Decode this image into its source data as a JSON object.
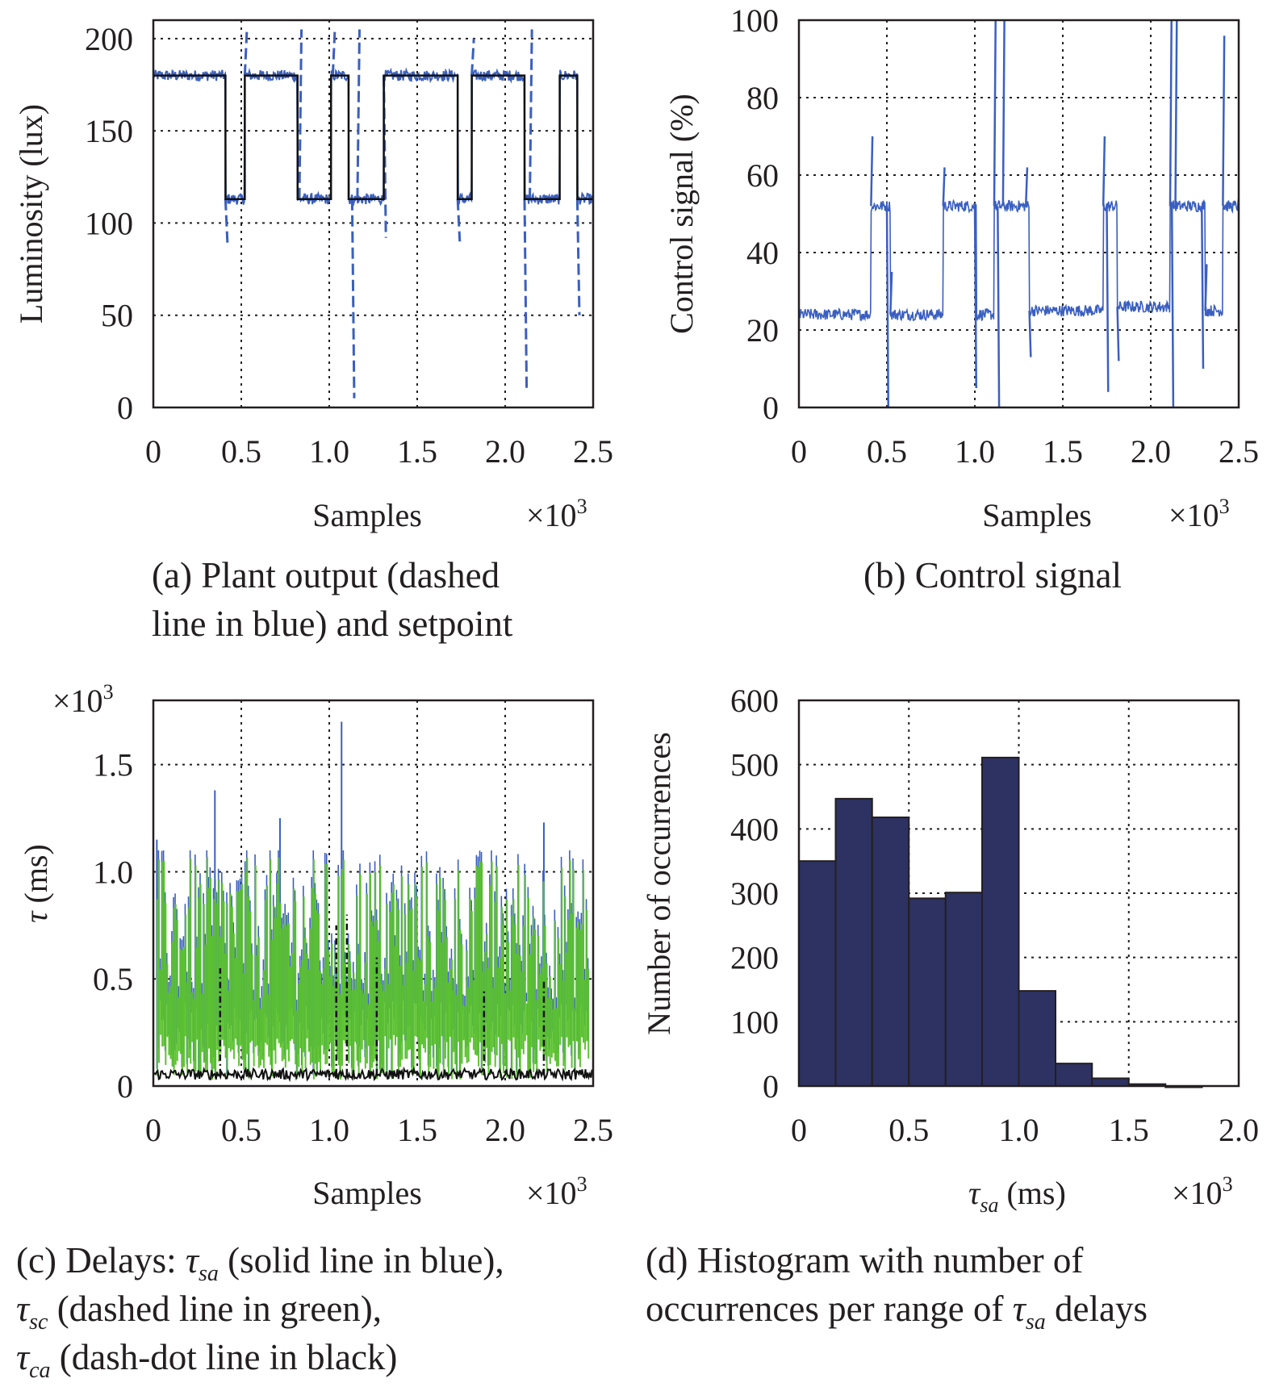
{
  "colors": {
    "blue": "#3a5fc0",
    "green": "#5cc231",
    "black": "#111111",
    "navy": "#2d3263",
    "axis": "#231f20"
  },
  "panel_a": {
    "caption_line1": "(a) Plant output (dashed",
    "caption_line2": "line in blue) and setpoint"
  },
  "panel_b": {
    "caption": "(b) Control signal"
  },
  "panel_c": {
    "caption_line1_prefix": "(c) Delays: ",
    "caption_line1_sym": "τ",
    "caption_line1_sub": "sa",
    "caption_line1_rest": " (solid line in blue),",
    "caption_line2_sym": "τ",
    "caption_line2_sub": "sc",
    "caption_line2_rest": " (dashed line in green),",
    "caption_line3_sym": "τ",
    "caption_line3_sub": "ca",
    "caption_line3_rest": " (dash-dot line in black)"
  },
  "panel_d": {
    "caption_line1": "(d) Histogram with number of",
    "caption_line2_prefix": "occurrences per range of ",
    "caption_line2_sym": "τ",
    "caption_line2_sub": "sa",
    "caption_line2_rest": " delays"
  },
  "chart_data": [
    {
      "id": "a",
      "type": "line",
      "ylabel": "Luminosity (lux)",
      "xlabel": "Samples",
      "x_multiplier": "×10",
      "x_multiplier_exp": "3",
      "xlim": [
        0,
        2.5
      ],
      "ylim": [
        0,
        210
      ],
      "xticks": [
        0,
        0.5,
        1.0,
        1.5,
        2.0,
        2.5
      ],
      "xtick_labels": [
        "0",
        "0.5",
        "1.0",
        "1.5",
        "2.0",
        "2.5"
      ],
      "yticks": [
        0,
        50,
        100,
        150,
        200
      ],
      "ytick_labels": [
        "0",
        "50",
        "100",
        "150",
        "200"
      ],
      "grid": true,
      "setpoint_steps": [
        [
          0,
          180
        ],
        [
          0.41,
          113
        ],
        [
          0.52,
          180
        ],
        [
          0.82,
          113
        ],
        [
          1.01,
          180
        ],
        [
          1.11,
          113
        ],
        [
          1.31,
          180
        ],
        [
          1.73,
          113
        ],
        [
          1.81,
          180
        ],
        [
          2.11,
          113
        ],
        [
          2.31,
          180
        ],
        [
          2.41,
          113
        ],
        [
          2.5,
          113
        ]
      ],
      "output_spikes": [
        [
          0.41,
          88
        ],
        [
          0.52,
          205
        ],
        [
          1.02,
          205
        ],
        [
          1.13,
          5
        ],
        [
          1.16,
          205
        ],
        [
          1.31,
          92
        ],
        [
          2.11,
          10
        ],
        [
          2.14,
          205
        ],
        [
          2.41,
          50
        ],
        [
          0.83,
          205
        ],
        [
          1.73,
          90
        ],
        [
          1.81,
          200
        ]
      ]
    },
    {
      "id": "b",
      "type": "line",
      "ylabel": "Control signal (%)",
      "xlabel": "Samples",
      "x_multiplier": "×10",
      "x_multiplier_exp": "3",
      "xlim": [
        0,
        2.5
      ],
      "ylim": [
        0,
        100
      ],
      "xticks": [
        0,
        0.5,
        1.0,
        1.5,
        2.0,
        2.5
      ],
      "xtick_labels": [
        "0",
        "0.5",
        "1.0",
        "1.5",
        "2.0",
        "2.5"
      ],
      "yticks": [
        0,
        20,
        40,
        60,
        80,
        100
      ],
      "ytick_labels": [
        "0",
        "20",
        "40",
        "60",
        "80",
        "100"
      ],
      "grid": true,
      "level_steps": [
        [
          0,
          24
        ],
        [
          0.41,
          52
        ],
        [
          0.52,
          24
        ],
        [
          0.82,
          52
        ],
        [
          1.01,
          24
        ],
        [
          1.11,
          52
        ],
        [
          1.31,
          25
        ],
        [
          1.73,
          52
        ],
        [
          1.81,
          26
        ],
        [
          2.11,
          52
        ],
        [
          2.31,
          25
        ],
        [
          2.41,
          52
        ],
        [
          2.5,
          52
        ]
      ],
      "spikes": [
        [
          0.41,
          70
        ],
        [
          0.5,
          0
        ],
        [
          0.52,
          35
        ],
        [
          0.82,
          62
        ],
        [
          1.0,
          5
        ],
        [
          1.11,
          100
        ],
        [
          1.13,
          0
        ],
        [
          1.16,
          100
        ],
        [
          1.29,
          62
        ],
        [
          1.31,
          13
        ],
        [
          1.73,
          70
        ],
        [
          1.75,
          4
        ],
        [
          1.81,
          12
        ],
        [
          2.11,
          100
        ],
        [
          2.12,
          0
        ],
        [
          2.14,
          100
        ],
        [
          2.29,
          10
        ],
        [
          2.31,
          37
        ],
        [
          2.41,
          96
        ]
      ]
    },
    {
      "id": "c",
      "type": "line",
      "y_multiplier": "×10",
      "y_multiplier_exp": "3",
      "ylabel_sym": "τ",
      "ylabel_rest": " (ms)",
      "xlabel": "Samples",
      "x_multiplier": "×10",
      "x_multiplier_exp": "3",
      "xlim": [
        0,
        2.5
      ],
      "ylim": [
        0,
        1.8
      ],
      "xticks": [
        0,
        0.5,
        1.0,
        1.5,
        2.0,
        2.5
      ],
      "xtick_labels": [
        "0",
        "0.5",
        "1.0",
        "1.5",
        "2.0",
        "2.5"
      ],
      "yticks": [
        0,
        0.5,
        1.0,
        1.5
      ],
      "ytick_labels": [
        "0",
        "0.5",
        "1.0",
        "1.5"
      ],
      "grid": true,
      "peaks": [
        [
          0.02,
          1.15
        ],
        [
          0.35,
          1.38
        ],
        [
          0.72,
          1.25
        ],
        [
          1.07,
          1.7
        ],
        [
          2.22,
          1.23
        ]
      ]
    },
    {
      "id": "d",
      "type": "bar",
      "ylabel": "Number of occurrences",
      "xlabel_sym": "τ",
      "xlabel_sub": "sa",
      "xlabel_rest": " (ms)",
      "x_multiplier": "×10",
      "x_multiplier_exp": "3",
      "xlim": [
        0,
        2.0
      ],
      "ylim": [
        0,
        600
      ],
      "xticks": [
        0,
        0.5,
        1.0,
        1.5,
        2.0
      ],
      "xtick_labels": [
        "0",
        "0.5",
        "1.0",
        "1.5",
        "2.0"
      ],
      "yticks": [
        0,
        100,
        200,
        300,
        400,
        500,
        600
      ],
      "ytick_labels": [
        "0",
        "100",
        "200",
        "300",
        "400",
        "500",
        "600"
      ],
      "grid": true,
      "bin_edges": [
        0.0,
        0.167,
        0.333,
        0.5,
        0.667,
        0.833,
        1.0,
        1.167,
        1.333,
        1.5,
        1.667,
        1.833
      ],
      "values": [
        350,
        447,
        418,
        292,
        301,
        511,
        148,
        35,
        12,
        3,
        0
      ]
    }
  ]
}
